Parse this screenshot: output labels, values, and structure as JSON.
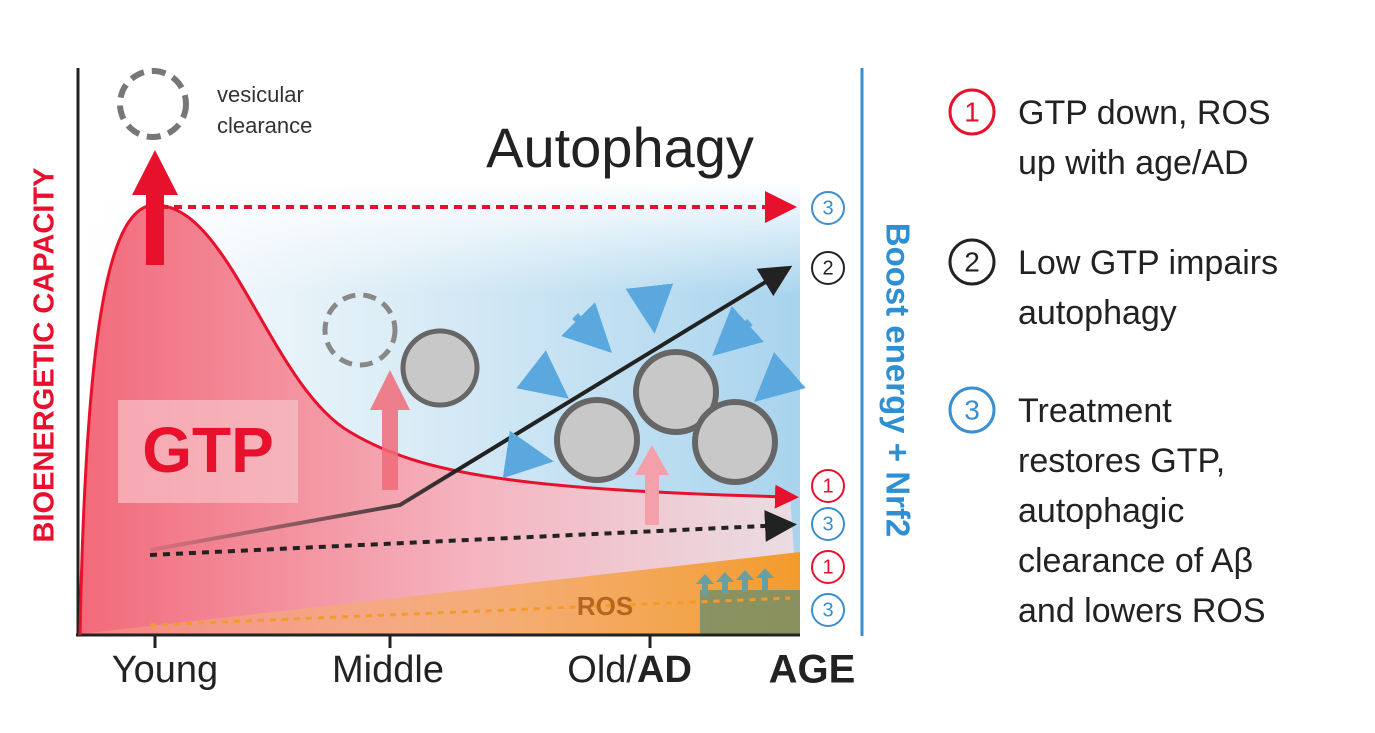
{
  "diagram": {
    "y_axis_label": "BIOENERGETIC CAPACITY",
    "right_axis_label": "Boost energy + Nrf2",
    "title": "Autophagy",
    "vesicle_label": [
      "vesicular",
      "clearance"
    ],
    "gtp_label": "GTP",
    "ros_label": "ROS",
    "x_labels": [
      "Young",
      "Middle"
    ],
    "x_label_old": "Old/",
    "x_label_ad": "AD",
    "x_axis_label": "AGE",
    "markers": [
      "3",
      "2",
      "1",
      "3",
      "1",
      "3"
    ]
  },
  "legend": [
    {
      "number": "1",
      "lines": [
        "GTP down, ROS",
        "up with age/AD"
      ]
    },
    {
      "number": "2",
      "lines": [
        "Low GTP impairs",
        "autophagy"
      ]
    },
    {
      "number": "3",
      "lines": [
        "Treatment",
        "restores GTP,",
        "autophagic",
        "clearance of Aβ",
        "and lowers ROS"
      ]
    }
  ]
}
